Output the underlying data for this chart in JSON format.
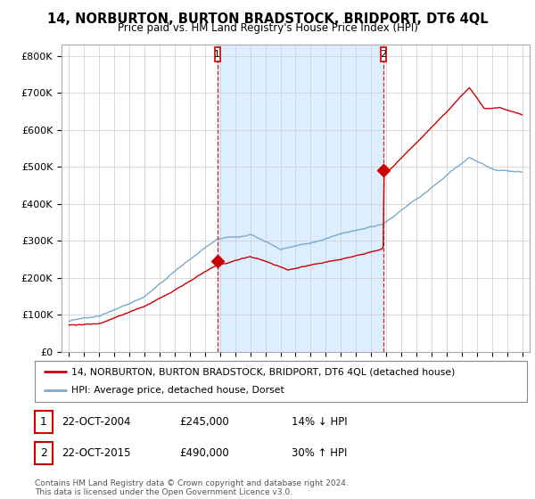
{
  "title": "14, NORBURTON, BURTON BRADSTOCK, BRIDPORT, DT6 4QL",
  "subtitle": "Price paid vs. HM Land Registry's House Price Index (HPI)",
  "ylabel_ticks": [
    "£0",
    "£100K",
    "£200K",
    "£300K",
    "£400K",
    "£500K",
    "£600K",
    "£700K",
    "£800K"
  ],
  "ytick_values": [
    0,
    100000,
    200000,
    300000,
    400000,
    500000,
    600000,
    700000,
    800000
  ],
  "ylim": [
    0,
    830000
  ],
  "xlim_start": 1994.5,
  "xlim_end": 2025.5,
  "line1_color": "#cc0000",
  "line2_color": "#7aaacc",
  "shade_color": "#ddeeff",
  "marker1_date": 2004.82,
  "marker1_value": 245000,
  "marker2_date": 2015.82,
  "marker2_value": 490000,
  "vline1_date": 2004.82,
  "vline2_date": 2015.82,
  "legend_line1": "14, NORBURTON, BURTON BRADSTOCK, BRIDPORT, DT6 4QL (detached house)",
  "legend_line2": "HPI: Average price, detached house, Dorset",
  "table_row1_date": "22-OCT-2004",
  "table_row1_price": "£245,000",
  "table_row1_hpi": "14% ↓ HPI",
  "table_row2_date": "22-OCT-2015",
  "table_row2_price": "£490,000",
  "table_row2_hpi": "30% ↑ HPI",
  "footer": "Contains HM Land Registry data © Crown copyright and database right 2024.\nThis data is licensed under the Open Government Licence v3.0.",
  "background_color": "#ffffff",
  "grid_color": "#cccccc"
}
